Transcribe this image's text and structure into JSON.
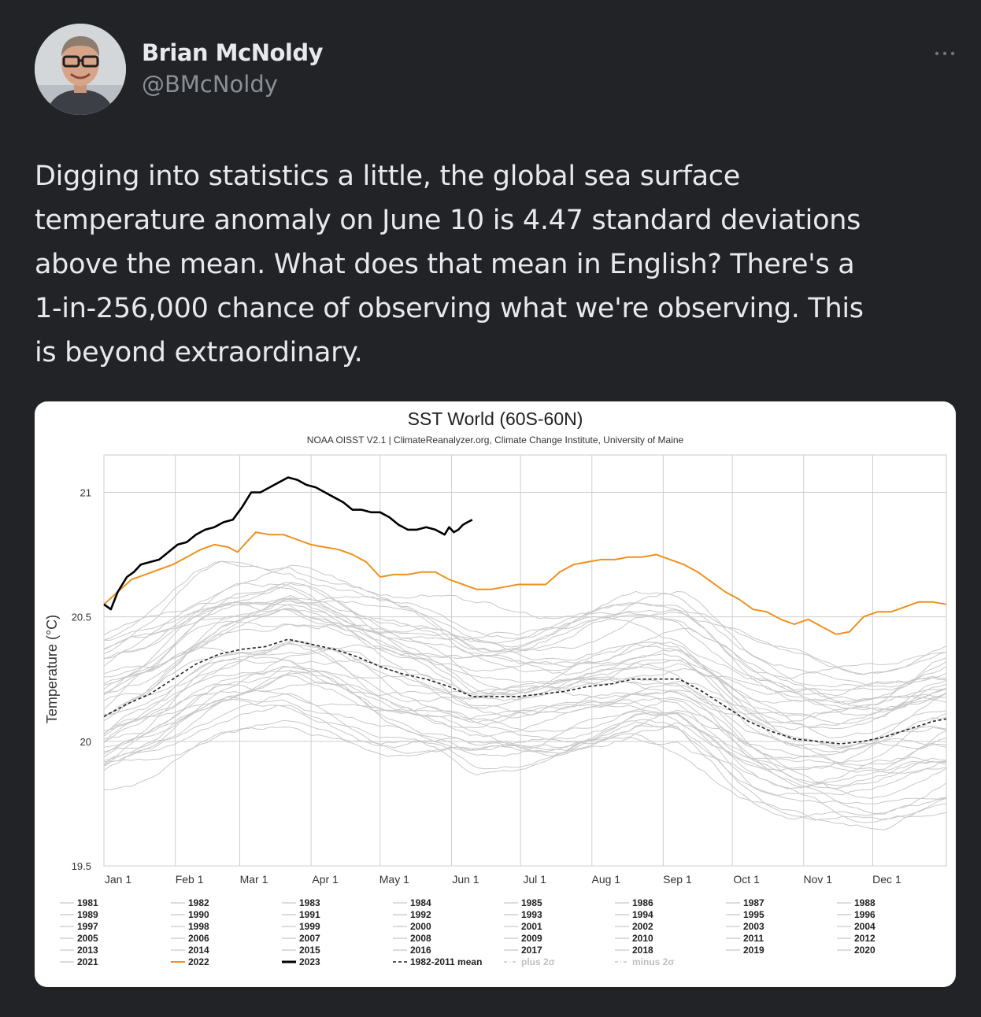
{
  "tweet": {
    "author": {
      "name": "Brian McNoldy",
      "handle": "@BMcNoldy",
      "avatar_icon": "person-photo"
    },
    "menu_icon": "more-horizontal-icon",
    "text": "Digging into statistics a little, the global sea surface\ntemperature anomaly on June 10 is 4.47 standard deviations\nabove the mean.  What does that mean in English?  There's a\n1-in-256,000 chance of observing what we're observing.  This\nis beyond extraordinary."
  },
  "chart_data": {
    "type": "line",
    "title": "SST World (60S-60N)",
    "subtitle": "NOAA OISST V2.1 | ClimateReanalyzer.org, Climate Change Institute, University of Maine",
    "xlabel": "",
    "ylabel": "Temperature (°C)",
    "ylim": [
      19.5,
      21.15
    ],
    "yticks": [
      19.5,
      20,
      20.5,
      21
    ],
    "xlim": [
      0,
      366
    ],
    "xticks": [
      {
        "label": "Jan 1",
        "day": 0
      },
      {
        "label": "Feb 1",
        "day": 31
      },
      {
        "label": "Mar 1",
        "day": 59
      },
      {
        "label": "Apr 1",
        "day": 90
      },
      {
        "label": "May 1",
        "day": 120
      },
      {
        "label": "Jun 1",
        "day": 151
      },
      {
        "label": "Jul 1",
        "day": 181
      },
      {
        "label": "Aug 1",
        "day": 212
      },
      {
        "label": "Sep 1",
        "day": 243
      },
      {
        "label": "Oct 1",
        "day": 273
      },
      {
        "label": "Nov 1",
        "day": 304
      },
      {
        "label": "Dec 1",
        "day": 334
      }
    ],
    "grid": true,
    "legend_placement": "bottom",
    "colors": {
      "background_years": "#c8c8c8",
      "y2022": "#f0901e",
      "y2023": "#000000",
      "mean": "#222222",
      "sigma": "#bbbbbb"
    },
    "series": [
      {
        "name": "2023",
        "style": "solid-black-bold",
        "x": [
          0,
          3,
          6,
          10,
          13,
          16,
          20,
          24,
          28,
          32,
          36,
          40,
          44,
          48,
          52,
          56,
          60,
          64,
          68,
          72,
          76,
          80,
          84,
          88,
          92,
          96,
          100,
          104,
          108,
          112,
          116,
          120,
          124,
          128,
          132,
          136,
          140,
          144,
          148,
          150,
          152,
          154,
          156,
          158,
          160
        ],
        "y": [
          20.55,
          20.53,
          20.6,
          20.66,
          20.68,
          20.71,
          20.72,
          20.73,
          20.76,
          20.79,
          20.8,
          20.83,
          20.85,
          20.86,
          20.88,
          20.89,
          20.94,
          21.0,
          21.0,
          21.02,
          21.04,
          21.06,
          21.05,
          21.03,
          21.02,
          21.0,
          20.98,
          20.96,
          20.93,
          20.93,
          20.92,
          20.92,
          20.9,
          20.87,
          20.85,
          20.85,
          20.86,
          20.85,
          20.83,
          20.86,
          20.84,
          20.85,
          20.87,
          20.88,
          20.89
        ]
      },
      {
        "name": "2022",
        "style": "solid-orange",
        "x": [
          0,
          6,
          12,
          18,
          24,
          30,
          36,
          42,
          48,
          54,
          58,
          62,
          66,
          72,
          78,
          84,
          90,
          96,
          102,
          108,
          114,
          120,
          126,
          132,
          138,
          144,
          150,
          156,
          162,
          168,
          174,
          180,
          186,
          192,
          198,
          204,
          210,
          216,
          222,
          228,
          234,
          240,
          246,
          252,
          258,
          264,
          270,
          276,
          282,
          288,
          294,
          300,
          306,
          312,
          318,
          324,
          330,
          336,
          342,
          348,
          354,
          360,
          366
        ],
        "y": [
          20.55,
          20.6,
          20.65,
          20.67,
          20.69,
          20.71,
          20.74,
          20.77,
          20.79,
          20.78,
          20.76,
          20.8,
          20.84,
          20.83,
          20.83,
          20.81,
          20.79,
          20.78,
          20.77,
          20.75,
          20.72,
          20.66,
          20.67,
          20.67,
          20.68,
          20.68,
          20.65,
          20.63,
          20.61,
          20.61,
          20.62,
          20.63,
          20.63,
          20.63,
          20.68,
          20.71,
          20.72,
          20.73,
          20.73,
          20.74,
          20.74,
          20.75,
          20.73,
          20.71,
          20.68,
          20.64,
          20.6,
          20.57,
          20.53,
          20.52,
          20.49,
          20.47,
          20.49,
          20.46,
          20.43,
          20.44,
          20.5,
          20.52,
          20.52,
          20.54,
          20.56,
          20.56,
          20.55
        ]
      },
      {
        "name": "1982-2011 mean",
        "style": "dashed-black",
        "x": [
          0,
          10,
          20,
          30,
          40,
          50,
          60,
          70,
          80,
          90,
          100,
          110,
          120,
          130,
          140,
          150,
          160,
          170,
          180,
          190,
          200,
          210,
          220,
          230,
          240,
          250,
          260,
          270,
          280,
          290,
          300,
          310,
          320,
          330,
          340,
          350,
          360,
          366
        ],
        "y": [
          20.1,
          20.15,
          20.19,
          20.25,
          20.31,
          20.35,
          20.37,
          20.38,
          20.41,
          20.39,
          20.37,
          20.34,
          20.3,
          20.27,
          20.25,
          20.22,
          20.18,
          20.18,
          20.18,
          20.19,
          20.2,
          20.22,
          20.23,
          20.25,
          20.25,
          20.25,
          20.2,
          20.14,
          20.08,
          20.04,
          20.01,
          20.0,
          19.99,
          20.0,
          20.02,
          20.05,
          20.08,
          20.09
        ]
      }
    ],
    "background_years": [
      "1981",
      "1982",
      "1983",
      "1984",
      "1985",
      "1986",
      "1987",
      "1988",
      "1989",
      "1990",
      "1991",
      "1992",
      "1993",
      "1994",
      "1995",
      "1996",
      "1997",
      "1998",
      "1999",
      "2000",
      "2001",
      "2002",
      "2003",
      "2004",
      "2005",
      "2006",
      "2007",
      "2008",
      "2009",
      "2010",
      "2011",
      "2012",
      "2013",
      "2014",
      "2015",
      "2016",
      "2017",
      "2018",
      "2019",
      "2020",
      "2021"
    ],
    "legend": {
      "columns": [
        [
          "1981",
          "1989",
          "1997",
          "2005",
          "2013",
          "2021"
        ],
        [
          "1982",
          "1990",
          "1998",
          "2006",
          "2014",
          "2022"
        ],
        [
          "1983",
          "1991",
          "1999",
          "2007",
          "2015",
          "2023"
        ],
        [
          "1984",
          "1992",
          "2000",
          "2008",
          "2016",
          "1982-2011 mean"
        ],
        [
          "1985",
          "1993",
          "2001",
          "2009",
          "2017",
          "plus 2σ"
        ],
        [
          "1986",
          "1994",
          "2002",
          "2010",
          "2018",
          "minus 2σ"
        ],
        [
          "1987",
          "1995",
          "2003",
          "2011",
          "2019"
        ],
        [
          "1988",
          "1996",
          "2004",
          "2012",
          "2020"
        ]
      ]
    }
  }
}
